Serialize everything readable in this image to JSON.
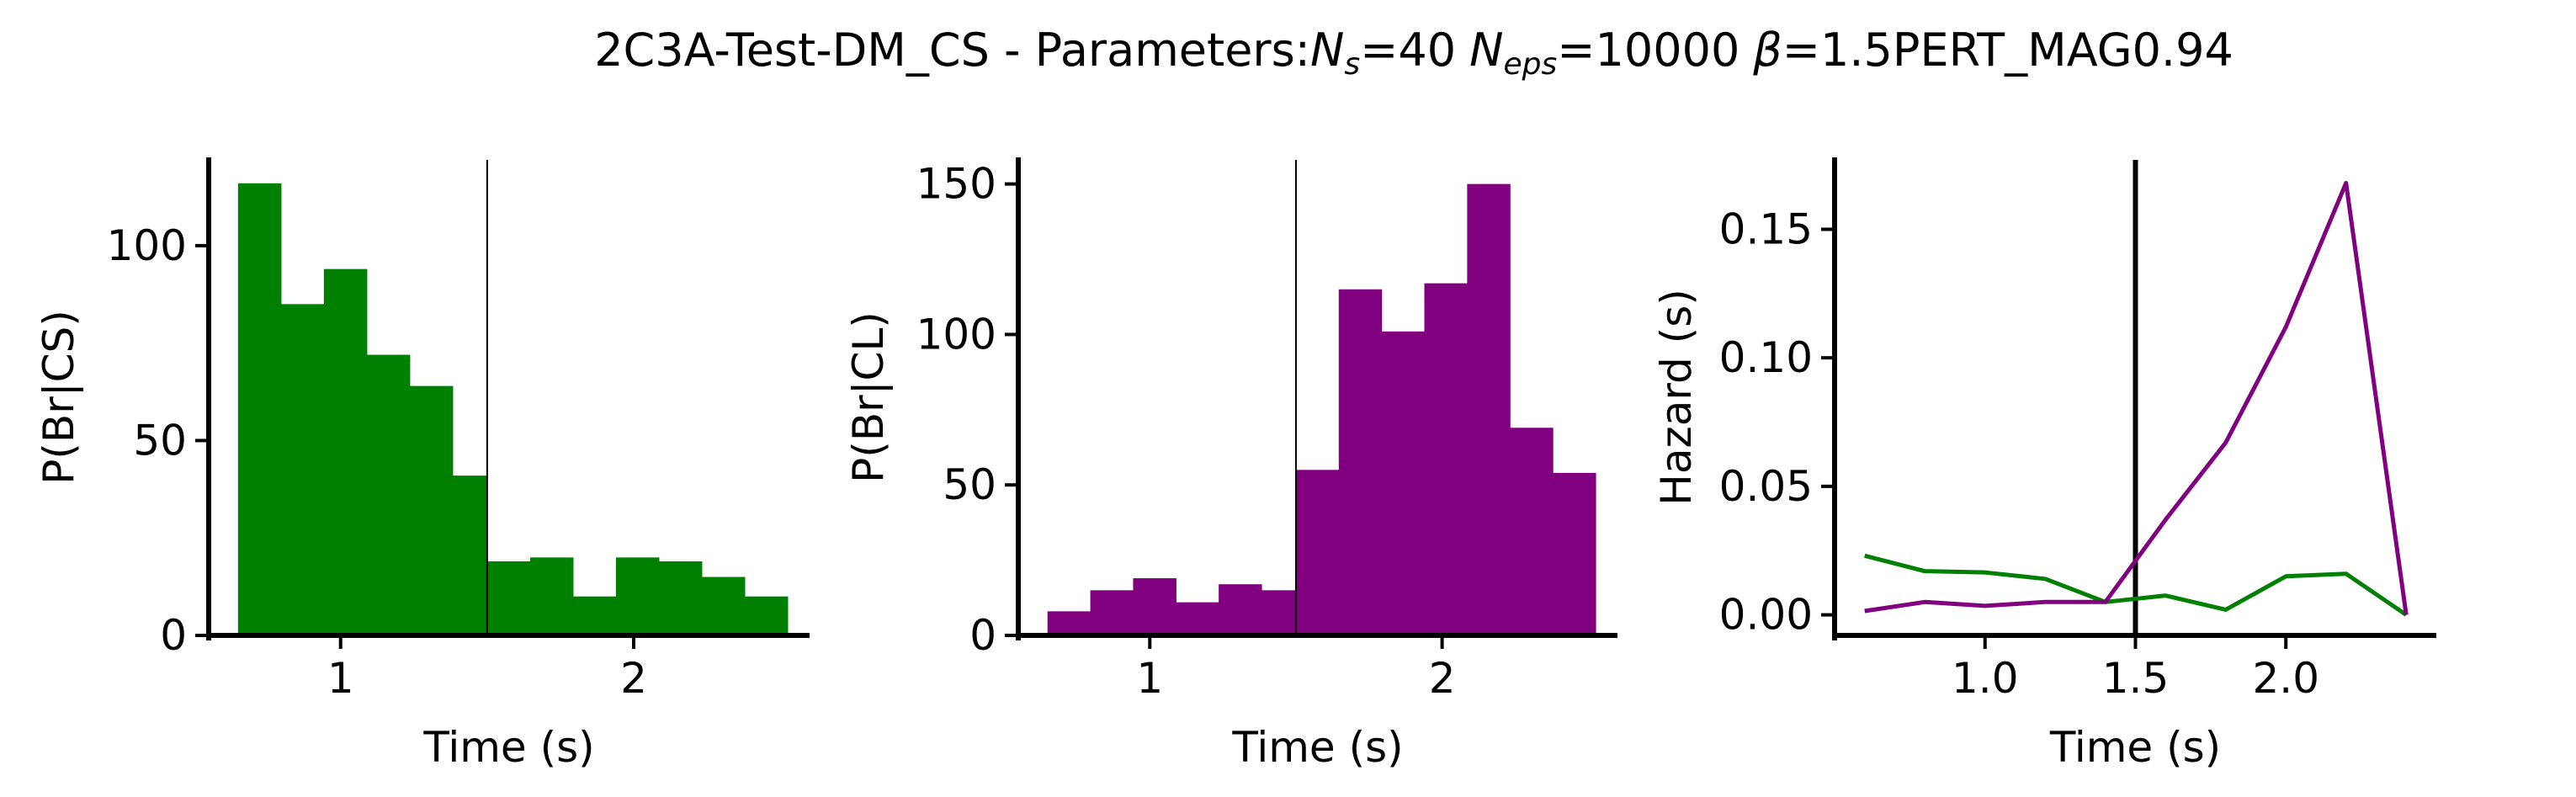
{
  "title": {
    "prefix": "2C3A-Test-DM_CS - Parameters:",
    "ns_symbol": "N",
    "ns_sub": "s",
    "ns_value": "=40",
    "neps_symbol": "N",
    "neps_sub": "eps",
    "neps_value": "=10000",
    "beta_symbol": "β",
    "beta_value": "=1.5PERT_MAG0.94"
  },
  "chart_data": [
    {
      "type": "bar",
      "subtype": "histogram",
      "xlabel": "Time (s)",
      "ylabel": "P(Br|CS)",
      "color": "#008000",
      "bin_edges": [
        0.65,
        0.7964,
        0.9429,
        1.0893,
        1.2357,
        1.3821,
        1.5,
        1.6464,
        1.7929,
        1.9393,
        2.0857,
        2.2321,
        2.3786,
        2.525
      ],
      "values": [
        116,
        85,
        94,
        72,
        64,
        41,
        19,
        20,
        10,
        20,
        19,
        15,
        10
      ],
      "xlim": [
        0.55,
        2.6
      ],
      "ylim": [
        0,
        122
      ],
      "xticks": [
        1,
        2
      ],
      "xtick_labels": [
        "1",
        "2"
      ],
      "yticks": [
        0,
        50,
        100
      ],
      "ytick_labels": [
        "0",
        "50",
        "100"
      ],
      "vline": 1.5
    },
    {
      "type": "bar",
      "subtype": "histogram",
      "xlabel": "Time (s)",
      "ylabel": "P(Br|CL)",
      "color": "#800080",
      "bin_edges": [
        0.65,
        0.7964,
        0.9429,
        1.0893,
        1.2357,
        1.3821,
        1.5,
        1.6464,
        1.7929,
        1.9393,
        2.0857,
        2.2321,
        2.3786,
        2.525
      ],
      "values": [
        8,
        15,
        19,
        11,
        17,
        15,
        55,
        115,
        101,
        117,
        150,
        69,
        54
      ],
      "xlim": [
        0.55,
        2.6
      ],
      "ylim": [
        0,
        158
      ],
      "xticks": [
        1,
        2
      ],
      "xtick_labels": [
        "1",
        "2"
      ],
      "yticks": [
        0,
        50,
        100,
        150
      ],
      "ytick_labels": [
        "0",
        "50",
        "100",
        "150"
      ],
      "vline": 1.5
    },
    {
      "type": "line",
      "xlabel": "Time (s)",
      "ylabel": "Hazard (s)",
      "xlim": [
        0.5,
        2.5
      ],
      "ylim": [
        -0.008,
        0.177
      ],
      "xticks": [
        1.0,
        1.5,
        2.0
      ],
      "xtick_labels": [
        "1.0",
        "1.5",
        "2.0"
      ],
      "yticks": [
        0.0,
        0.05,
        0.1,
        0.15
      ],
      "ytick_labels": [
        "0.00",
        "0.05",
        "0.10",
        "0.15"
      ],
      "vline": 1.5,
      "series": [
        {
          "color": "#008000",
          "x": [
            0.6,
            0.8,
            1.0,
            1.2,
            1.4,
            1.6,
            1.8,
            2.0,
            2.2,
            2.4
          ],
          "y": [
            0.023,
            0.017,
            0.0165,
            0.014,
            0.005,
            0.0075,
            0.002,
            0.015,
            0.016,
            0.0
          ]
        },
        {
          "color": "#800080",
          "x": [
            0.6,
            0.8,
            1.0,
            1.2,
            1.4,
            1.6,
            1.8,
            2.0,
            2.2,
            2.4
          ],
          "y": [
            0.0015,
            0.005,
            0.0035,
            0.005,
            0.005,
            0.037,
            0.067,
            0.112,
            0.168,
            0.0
          ]
        }
      ]
    }
  ]
}
